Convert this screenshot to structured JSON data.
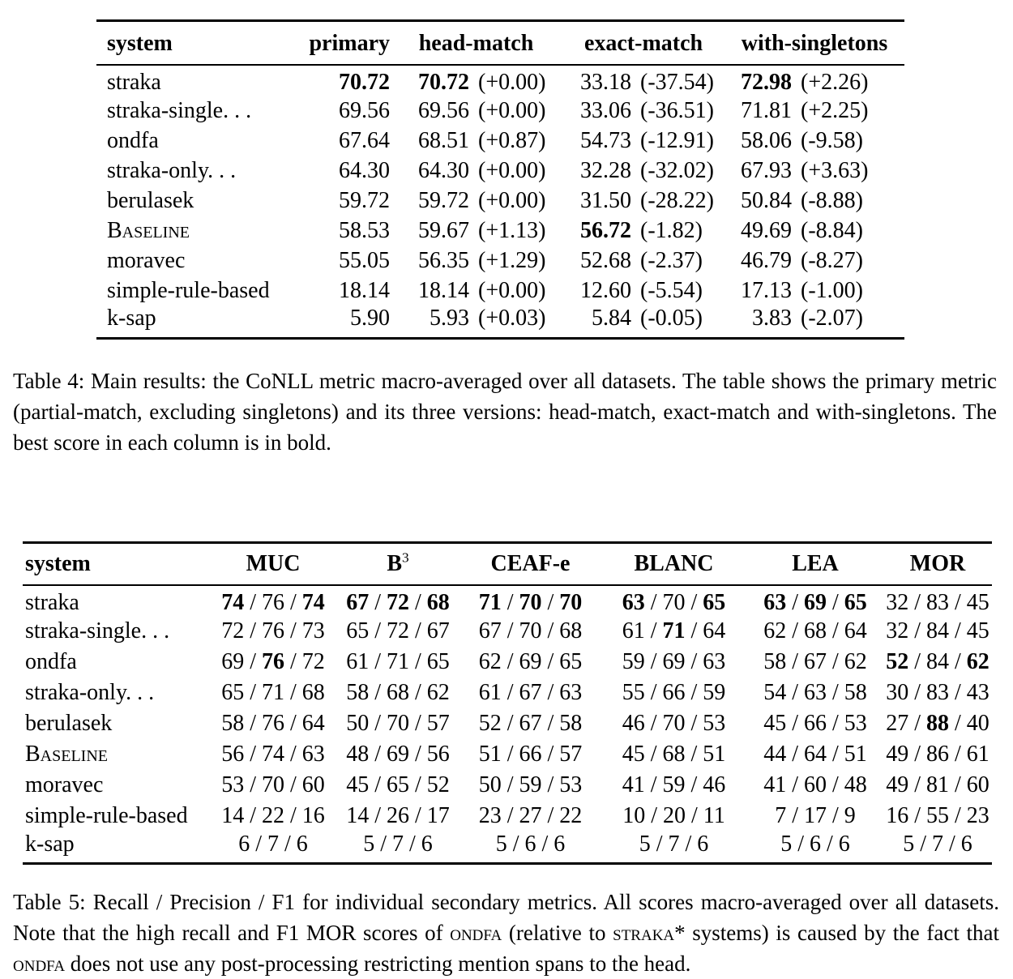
{
  "table4": {
    "headers": {
      "system": "system",
      "primary": "primary",
      "head": "head-match",
      "exact": "exact-match",
      "single": "with-singletons"
    },
    "rows": [
      {
        "system": "straka",
        "sc": false,
        "primary": {
          "v": "70.72",
          "b": true
        },
        "head": {
          "v": "70.72",
          "b": true,
          "d": "(+0.00)"
        },
        "exact": {
          "v": "33.18",
          "b": false,
          "d": "(-37.54)"
        },
        "single": {
          "v": "72.98",
          "b": true,
          "d": "(+2.26)"
        }
      },
      {
        "system": "straka-single. . .",
        "sc": false,
        "primary": {
          "v": "69.56",
          "b": false
        },
        "head": {
          "v": "69.56",
          "b": false,
          "d": "(+0.00)"
        },
        "exact": {
          "v": "33.06",
          "b": false,
          "d": "(-36.51)"
        },
        "single": {
          "v": "71.81",
          "b": false,
          "d": "(+2.25)"
        }
      },
      {
        "system": "ondfa",
        "sc": false,
        "primary": {
          "v": "67.64",
          "b": false
        },
        "head": {
          "v": "68.51",
          "b": false,
          "d": "(+0.87)"
        },
        "exact": {
          "v": "54.73",
          "b": false,
          "d": "(-12.91)"
        },
        "single": {
          "v": "58.06",
          "b": false,
          "d": "(-9.58)"
        }
      },
      {
        "system": "straka-only. . .",
        "sc": false,
        "primary": {
          "v": "64.30",
          "b": false
        },
        "head": {
          "v": "64.30",
          "b": false,
          "d": "(+0.00)"
        },
        "exact": {
          "v": "32.28",
          "b": false,
          "d": "(-32.02)"
        },
        "single": {
          "v": "67.93",
          "b": false,
          "d": "(+3.63)"
        }
      },
      {
        "system": "berulasek",
        "sc": false,
        "primary": {
          "v": "59.72",
          "b": false
        },
        "head": {
          "v": "59.72",
          "b": false,
          "d": "(+0.00)"
        },
        "exact": {
          "v": "31.50",
          "b": false,
          "d": "(-28.22)"
        },
        "single": {
          "v": "50.84",
          "b": false,
          "d": "(-8.88)"
        }
      },
      {
        "system": "Baseline",
        "sc": true,
        "primary": {
          "v": "58.53",
          "b": false
        },
        "head": {
          "v": "59.67",
          "b": false,
          "d": "(+1.13)"
        },
        "exact": {
          "v": "56.72",
          "b": true,
          "d": "(-1.82)"
        },
        "single": {
          "v": "49.69",
          "b": false,
          "d": "(-8.84)"
        }
      },
      {
        "system": "moravec",
        "sc": false,
        "primary": {
          "v": "55.05",
          "b": false
        },
        "head": {
          "v": "56.35",
          "b": false,
          "d": "(+1.29)"
        },
        "exact": {
          "v": "52.68",
          "b": false,
          "d": "(-2.37)"
        },
        "single": {
          "v": "46.79",
          "b": false,
          "d": "(-8.27)"
        }
      },
      {
        "system": "simple-rule-based",
        "sc": false,
        "primary": {
          "v": "18.14",
          "b": false
        },
        "head": {
          "v": "18.14",
          "b": false,
          "d": "(+0.00)"
        },
        "exact": {
          "v": "12.60",
          "b": false,
          "d": "(-5.54)"
        },
        "single": {
          "v": "17.13",
          "b": false,
          "d": "(-1.00)"
        }
      },
      {
        "system": "k-sap",
        "sc": false,
        "primary": {
          "v": "5.90",
          "b": false
        },
        "head": {
          "v": "5.93",
          "b": false,
          "d": "(+0.03)"
        },
        "exact": {
          "v": "5.84",
          "b": false,
          "d": "(-0.05)"
        },
        "single": {
          "v": "3.83",
          "b": false,
          "d": "(-2.07)"
        }
      }
    ],
    "caption": "Table 4: Main results: the CoNLL metric macro-averaged over all datasets. The table shows the primary metric (partial-match, excluding singletons) and its three versions: head-match, exact-match and with-singletons. The best score in each column is in bold."
  },
  "table5": {
    "headers": [
      {
        "key": "system",
        "label": "system"
      },
      {
        "key": "muc",
        "label": "MUC"
      },
      {
        "key": "b3",
        "label": "B",
        "sup": "3"
      },
      {
        "key": "ceaf-e",
        "label": "CEAF-e"
      },
      {
        "key": "blanc",
        "label": "BLANC"
      },
      {
        "key": "lea",
        "label": "LEA"
      },
      {
        "key": "mor",
        "label": "MOR"
      }
    ],
    "separator": " / ",
    "rows": [
      {
        "system": "straka",
        "sc": false,
        "metrics": [
          [
            [
              "74",
              true
            ],
            [
              "76",
              false
            ],
            [
              "74",
              true
            ]
          ],
          [
            [
              "67",
              true
            ],
            [
              "72",
              true
            ],
            [
              "68",
              true
            ]
          ],
          [
            [
              "71",
              true
            ],
            [
              "70",
              true
            ],
            [
              "70",
              true
            ]
          ],
          [
            [
              "63",
              true
            ],
            [
              "70",
              false
            ],
            [
              "65",
              true
            ]
          ],
          [
            [
              "63",
              true
            ],
            [
              "69",
              true
            ],
            [
              "65",
              true
            ]
          ],
          [
            [
              "32",
              false
            ],
            [
              "83",
              false
            ],
            [
              "45",
              false
            ]
          ]
        ]
      },
      {
        "system": "straka-single. . .",
        "sc": false,
        "metrics": [
          [
            [
              "72",
              false
            ],
            [
              "76",
              false
            ],
            [
              "73",
              false
            ]
          ],
          [
            [
              "65",
              false
            ],
            [
              "72",
              false
            ],
            [
              "67",
              false
            ]
          ],
          [
            [
              "67",
              false
            ],
            [
              "70",
              false
            ],
            [
              "68",
              false
            ]
          ],
          [
            [
              "61",
              false
            ],
            [
              "71",
              true
            ],
            [
              "64",
              false
            ]
          ],
          [
            [
              "62",
              false
            ],
            [
              "68",
              false
            ],
            [
              "64",
              false
            ]
          ],
          [
            [
              "32",
              false
            ],
            [
              "84",
              false
            ],
            [
              "45",
              false
            ]
          ]
        ]
      },
      {
        "system": "ondfa",
        "sc": false,
        "metrics": [
          [
            [
              "69",
              false
            ],
            [
              "76",
              true
            ],
            [
              "72",
              false
            ]
          ],
          [
            [
              "61",
              false
            ],
            [
              "71",
              false
            ],
            [
              "65",
              false
            ]
          ],
          [
            [
              "62",
              false
            ],
            [
              "69",
              false
            ],
            [
              "65",
              false
            ]
          ],
          [
            [
              "59",
              false
            ],
            [
              "69",
              false
            ],
            [
              "63",
              false
            ]
          ],
          [
            [
              "58",
              false
            ],
            [
              "67",
              false
            ],
            [
              "62",
              false
            ]
          ],
          [
            [
              "52",
              true
            ],
            [
              "84",
              false
            ],
            [
              "62",
              true
            ]
          ]
        ]
      },
      {
        "system": "straka-only. . .",
        "sc": false,
        "metrics": [
          [
            [
              "65",
              false
            ],
            [
              "71",
              false
            ],
            [
              "68",
              false
            ]
          ],
          [
            [
              "58",
              false
            ],
            [
              "68",
              false
            ],
            [
              "62",
              false
            ]
          ],
          [
            [
              "61",
              false
            ],
            [
              "67",
              false
            ],
            [
              "63",
              false
            ]
          ],
          [
            [
              "55",
              false
            ],
            [
              "66",
              false
            ],
            [
              "59",
              false
            ]
          ],
          [
            [
              "54",
              false
            ],
            [
              "63",
              false
            ],
            [
              "58",
              false
            ]
          ],
          [
            [
              "30",
              false
            ],
            [
              "83",
              false
            ],
            [
              "43",
              false
            ]
          ]
        ]
      },
      {
        "system": "berulasek",
        "sc": false,
        "metrics": [
          [
            [
              "58",
              false
            ],
            [
              "76",
              false
            ],
            [
              "64",
              false
            ]
          ],
          [
            [
              "50",
              false
            ],
            [
              "70",
              false
            ],
            [
              "57",
              false
            ]
          ],
          [
            [
              "52",
              false
            ],
            [
              "67",
              false
            ],
            [
              "58",
              false
            ]
          ],
          [
            [
              "46",
              false
            ],
            [
              "70",
              false
            ],
            [
              "53",
              false
            ]
          ],
          [
            [
              "45",
              false
            ],
            [
              "66",
              false
            ],
            [
              "53",
              false
            ]
          ],
          [
            [
              "27",
              false
            ],
            [
              "88",
              true
            ],
            [
              "40",
              false
            ]
          ]
        ]
      },
      {
        "system": "Baseline",
        "sc": true,
        "metrics": [
          [
            [
              "56",
              false
            ],
            [
              "74",
              false
            ],
            [
              "63",
              false
            ]
          ],
          [
            [
              "48",
              false
            ],
            [
              "69",
              false
            ],
            [
              "56",
              false
            ]
          ],
          [
            [
              "51",
              false
            ],
            [
              "66",
              false
            ],
            [
              "57",
              false
            ]
          ],
          [
            [
              "45",
              false
            ],
            [
              "68",
              false
            ],
            [
              "51",
              false
            ]
          ],
          [
            [
              "44",
              false
            ],
            [
              "64",
              false
            ],
            [
              "51",
              false
            ]
          ],
          [
            [
              "49",
              false
            ],
            [
              "86",
              false
            ],
            [
              "61",
              false
            ]
          ]
        ]
      },
      {
        "system": "moravec",
        "sc": false,
        "metrics": [
          [
            [
              "53",
              false
            ],
            [
              "70",
              false
            ],
            [
              "60",
              false
            ]
          ],
          [
            [
              "45",
              false
            ],
            [
              "65",
              false
            ],
            [
              "52",
              false
            ]
          ],
          [
            [
              "50",
              false
            ],
            [
              "59",
              false
            ],
            [
              "53",
              false
            ]
          ],
          [
            [
              "41",
              false
            ],
            [
              "59",
              false
            ],
            [
              "46",
              false
            ]
          ],
          [
            [
              "41",
              false
            ],
            [
              "60",
              false
            ],
            [
              "48",
              false
            ]
          ],
          [
            [
              "49",
              false
            ],
            [
              "81",
              false
            ],
            [
              "60",
              false
            ]
          ]
        ]
      },
      {
        "system": "simple-rule-based",
        "sc": false,
        "metrics": [
          [
            [
              "14",
              false
            ],
            [
              "22",
              false
            ],
            [
              "16",
              false
            ]
          ],
          [
            [
              "14",
              false
            ],
            [
              "26",
              false
            ],
            [
              "17",
              false
            ]
          ],
          [
            [
              "23",
              false
            ],
            [
              "27",
              false
            ],
            [
              "22",
              false
            ]
          ],
          [
            [
              "10",
              false
            ],
            [
              "20",
              false
            ],
            [
              "11",
              false
            ]
          ],
          [
            [
              "7",
              false
            ],
            [
              "17",
              false
            ],
            [
              "9",
              false
            ]
          ],
          [
            [
              "16",
              false
            ],
            [
              "55",
              false
            ],
            [
              "23",
              false
            ]
          ]
        ]
      },
      {
        "system": "k-sap",
        "sc": false,
        "metrics": [
          [
            [
              "6",
              false
            ],
            [
              "7",
              false
            ],
            [
              "6",
              false
            ]
          ],
          [
            [
              "5",
              false
            ],
            [
              "7",
              false
            ],
            [
              "6",
              false
            ]
          ],
          [
            [
              "5",
              false
            ],
            [
              "6",
              false
            ],
            [
              "6",
              false
            ]
          ],
          [
            [
              "5",
              false
            ],
            [
              "7",
              false
            ],
            [
              "6",
              false
            ]
          ],
          [
            [
              "5",
              false
            ],
            [
              "6",
              false
            ],
            [
              "6",
              false
            ]
          ],
          [
            [
              "5",
              false
            ],
            [
              "7",
              false
            ],
            [
              "6",
              false
            ]
          ]
        ]
      }
    ],
    "caption_segments": [
      {
        "t": "Table 5: Recall / Precision / F1 for individual secondary metrics. All scores macro-averaged over all datasets. Note that the high recall and F1 MOR scores of "
      },
      {
        "t": "ondfa",
        "sc": true
      },
      {
        "t": " (relative to "
      },
      {
        "t": "straka",
        "sc": true
      },
      {
        "t": "* systems) is caused by the fact that "
      },
      {
        "t": "ondfa",
        "sc": true
      },
      {
        "t": " does not use any post-processing restricting mention spans to the head."
      }
    ]
  }
}
